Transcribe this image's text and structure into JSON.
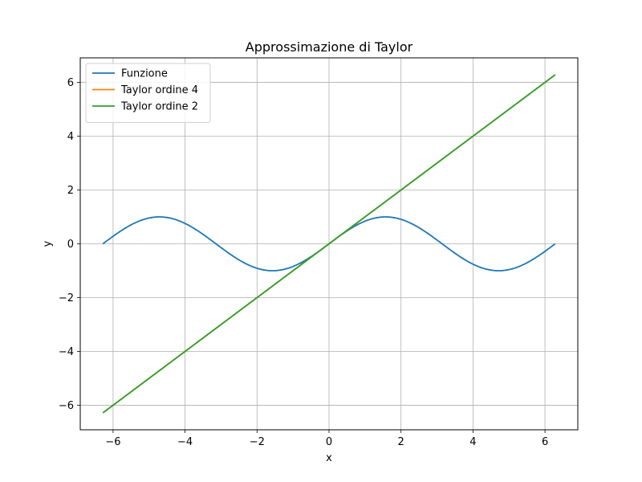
{
  "chart_data": {
    "type": "line",
    "title": "Approssimazione di Taylor",
    "xlabel": "x",
    "ylabel": "y",
    "xlim": [
      -6.912,
      6.912
    ],
    "ylim": [
      -6.912,
      6.912
    ],
    "xticks": [
      -6,
      -4,
      -2,
      0,
      2,
      4,
      6
    ],
    "yticks": [
      -6,
      -4,
      -2,
      0,
      2,
      4,
      6
    ],
    "grid": true,
    "legend_position": "top-left",
    "x_domain": [
      -6.283,
      6.283
    ],
    "series": [
      {
        "name": "Funzione",
        "color": "#1f77b4",
        "expression": "sin(x)"
      },
      {
        "name": "Taylor ordine 4",
        "color": "#ff7f0e",
        "expression": "x"
      },
      {
        "name": "Taylor ordine 2",
        "color": "#2ca02c",
        "expression": "x"
      }
    ]
  }
}
